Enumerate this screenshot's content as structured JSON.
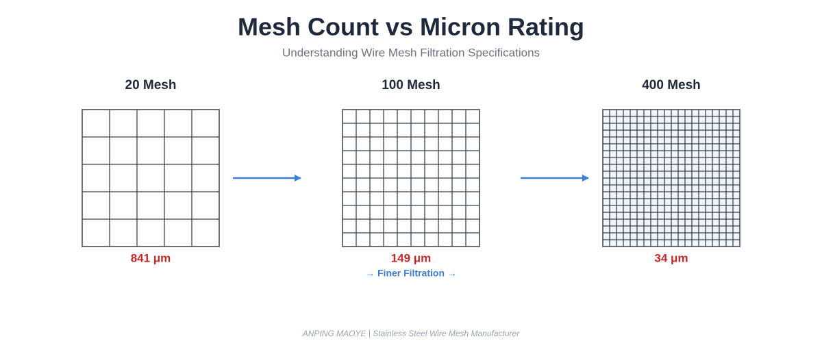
{
  "header": {
    "title": "Mesh Count vs Micron Rating",
    "subtitle": "Understanding Wire Mesh Filtration Specifications"
  },
  "panels": [
    {
      "label": "20 Mesh",
      "micron": "841 μm"
    },
    {
      "label": "100 Mesh",
      "micron": "149 μm"
    },
    {
      "label": "400 Mesh",
      "micron": "34 μm"
    }
  ],
  "note": "→ Finer Filtration →",
  "footer": "ANPING MAOYE | Stainless Steel Wire Mesh Manufacturer"
}
